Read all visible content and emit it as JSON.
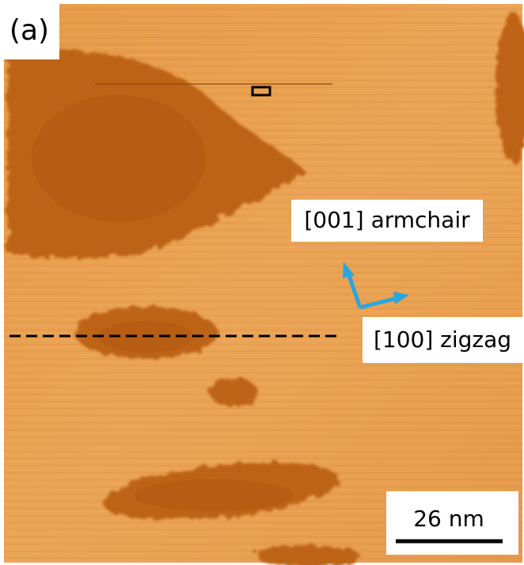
{
  "panel_label": "(a)",
  "annotations": {
    "armchair": "[001] armchair",
    "zigzag": "[100] zigzag"
  },
  "scale_bar": "26 nm"
}
